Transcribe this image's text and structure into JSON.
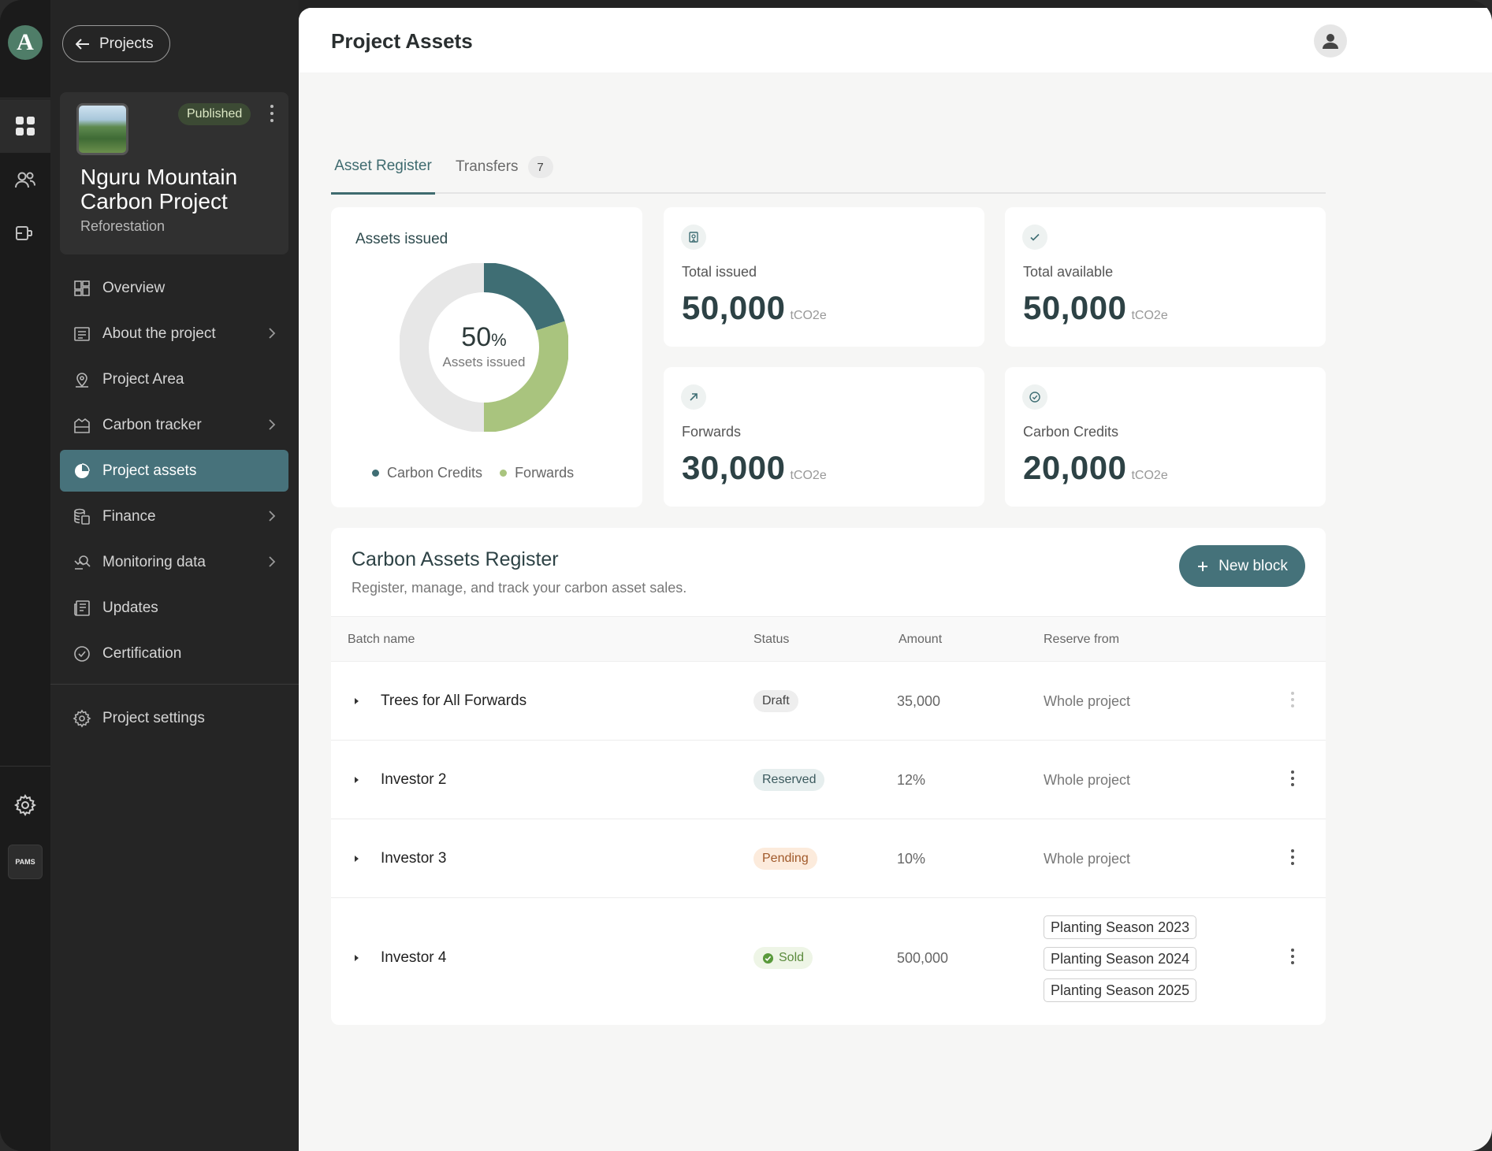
{
  "sidebar": {
    "back_label": "Projects",
    "project": {
      "status": "Published",
      "title": "Nguru Mountain Carbon Project",
      "subtitle": "Reforestation"
    },
    "items": [
      {
        "label": "Overview",
        "icon": "dashboard-icon",
        "chevron": false
      },
      {
        "label": "About the project",
        "icon": "document-icon",
        "chevron": true
      },
      {
        "label": "Project Area",
        "icon": "map-pin-icon",
        "chevron": false
      },
      {
        "label": "Carbon tracker",
        "icon": "tracker-icon",
        "chevron": true
      },
      {
        "label": "Project assets",
        "icon": "pie-chart-icon",
        "chevron": false,
        "active": true
      },
      {
        "label": "Finance",
        "icon": "coins-icon",
        "chevron": true
      },
      {
        "label": "Monitoring data",
        "icon": "monitor-search-icon",
        "chevron": true
      },
      {
        "label": "Updates",
        "icon": "newspaper-icon",
        "chevron": false
      },
      {
        "label": "Certification",
        "icon": "check-circle-icon",
        "chevron": false
      }
    ],
    "settings_label": "Project settings"
  },
  "rail": {
    "logo": "A",
    "badge": "PAMS"
  },
  "header": {
    "title": "Project Assets"
  },
  "tabs": [
    {
      "label": "Asset Register",
      "active": true
    },
    {
      "label": "Transfers",
      "count": "7"
    }
  ],
  "summary": {
    "donut": {
      "title": "Assets issued",
      "percent": "50",
      "percent_sign": "%",
      "center_label": "Assets issued",
      "legend": [
        {
          "label": "Carbon Credits",
          "color": "#3f6e74"
        },
        {
          "label": "Forwards",
          "color": "#a9c47e"
        }
      ]
    },
    "stats": [
      {
        "label": "Total issued",
        "value": "50,000",
        "unit": "tCO2e",
        "icon": "certificate-icon"
      },
      {
        "label": "Total available",
        "value": "50,000",
        "unit": "tCO2e",
        "icon": "check-icon"
      },
      {
        "label": "Forwards",
        "value": "30,000",
        "unit": "tCO2e",
        "icon": "arrow-up-right-icon"
      },
      {
        "label": "Carbon Credits",
        "value": "20,000",
        "unit": "tCO2e",
        "icon": "check-circle-icon"
      }
    ]
  },
  "chart_data": {
    "type": "pie",
    "categories": [
      "Carbon Credits",
      "Forwards",
      "Unissued"
    ],
    "values": [
      20000,
      30000,
      50000
    ],
    "title": "Assets issued",
    "center_text": "50% Assets issued"
  },
  "register": {
    "title": "Carbon Assets Register",
    "subtitle": "Register, manage, and track your carbon asset sales.",
    "new_button": "New block",
    "columns": [
      "Batch name",
      "Status",
      "Amount",
      "Reserve from"
    ],
    "rows": [
      {
        "batch": "Trees for All Forwards",
        "status": "Draft",
        "amount": "35,000",
        "reserve": "Whole project"
      },
      {
        "batch": "Investor 2",
        "status": "Reserved",
        "amount": "12%",
        "reserve": "Whole project"
      },
      {
        "batch": "Investor 3",
        "status": "Pending",
        "amount": "10%",
        "reserve": "Whole project"
      },
      {
        "batch": "Investor 4",
        "status": "Sold",
        "amount": "500,000",
        "reserve_tags": [
          "Planting Season 2023",
          "Planting Season 2024",
          "Planting Season 2025"
        ]
      }
    ]
  },
  "colors": {
    "accent": "#45727a",
    "sidebar_bg": "#252525",
    "donut_bg": "#e7e7e7"
  }
}
